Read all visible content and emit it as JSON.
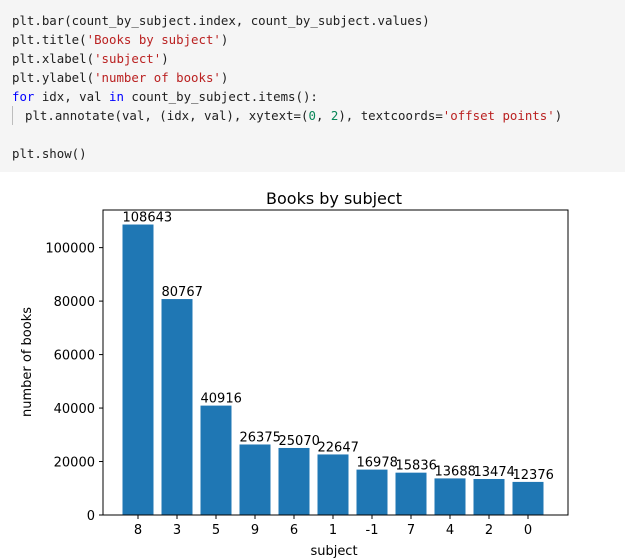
{
  "code_cell": {
    "lines": [
      [
        {
          "t": "plt.bar(count_by_subject.index, count_by_subject.values)",
          "c": ""
        }
      ],
      [
        {
          "t": "plt.title(",
          "c": ""
        },
        {
          "t": "'Books by subject'",
          "c": "str"
        },
        {
          "t": ")",
          "c": ""
        }
      ],
      [
        {
          "t": "plt.xlabel(",
          "c": ""
        },
        {
          "t": "'subject'",
          "c": "str"
        },
        {
          "t": ")",
          "c": ""
        }
      ],
      [
        {
          "t": "plt.ylabel(",
          "c": ""
        },
        {
          "t": "'number of books'",
          "c": "str"
        },
        {
          "t": ")",
          "c": ""
        }
      ],
      [
        {
          "t": "for",
          "c": "kw"
        },
        {
          "t": " idx, val ",
          "c": ""
        },
        {
          "t": "in",
          "c": "kw"
        },
        {
          "t": " count_by_subject.items():",
          "c": ""
        }
      ],
      [
        {
          "t": "plt.annotate(val, (idx, val), xytext=(",
          "c": ""
        },
        {
          "t": "0",
          "c": "num"
        },
        {
          "t": ", ",
          "c": ""
        },
        {
          "t": "2",
          "c": "num"
        },
        {
          "t": "), textcoords=",
          "c": ""
        },
        {
          "t": "'offset points'",
          "c": "str"
        },
        {
          "t": ")",
          "c": ""
        }
      ],
      [],
      [
        {
          "t": "plt.show()",
          "c": ""
        }
      ]
    ],
    "indented_lines": [
      5
    ]
  },
  "chart_data": {
    "type": "bar",
    "title": "Books by subject",
    "xlabel": "subject",
    "ylabel": "number of books",
    "categories": [
      "8",
      "3",
      "5",
      "9",
      "6",
      "1",
      "-1",
      "7",
      "4",
      "2",
      "0"
    ],
    "values": [
      108643,
      80767,
      40916,
      26375,
      25070,
      22647,
      16978,
      15836,
      13688,
      13474,
      12376
    ],
    "data_labels": [
      "108643",
      "80767",
      "40916",
      "26375",
      "25070",
      "22647",
      "16978",
      "15836",
      "13688",
      "13474",
      "12376"
    ],
    "yticks": [
      0,
      20000,
      40000,
      60000,
      80000,
      100000
    ],
    "ylim": [
      0,
      114075
    ],
    "bar_color": "#1f77b4",
    "grid": false
  }
}
